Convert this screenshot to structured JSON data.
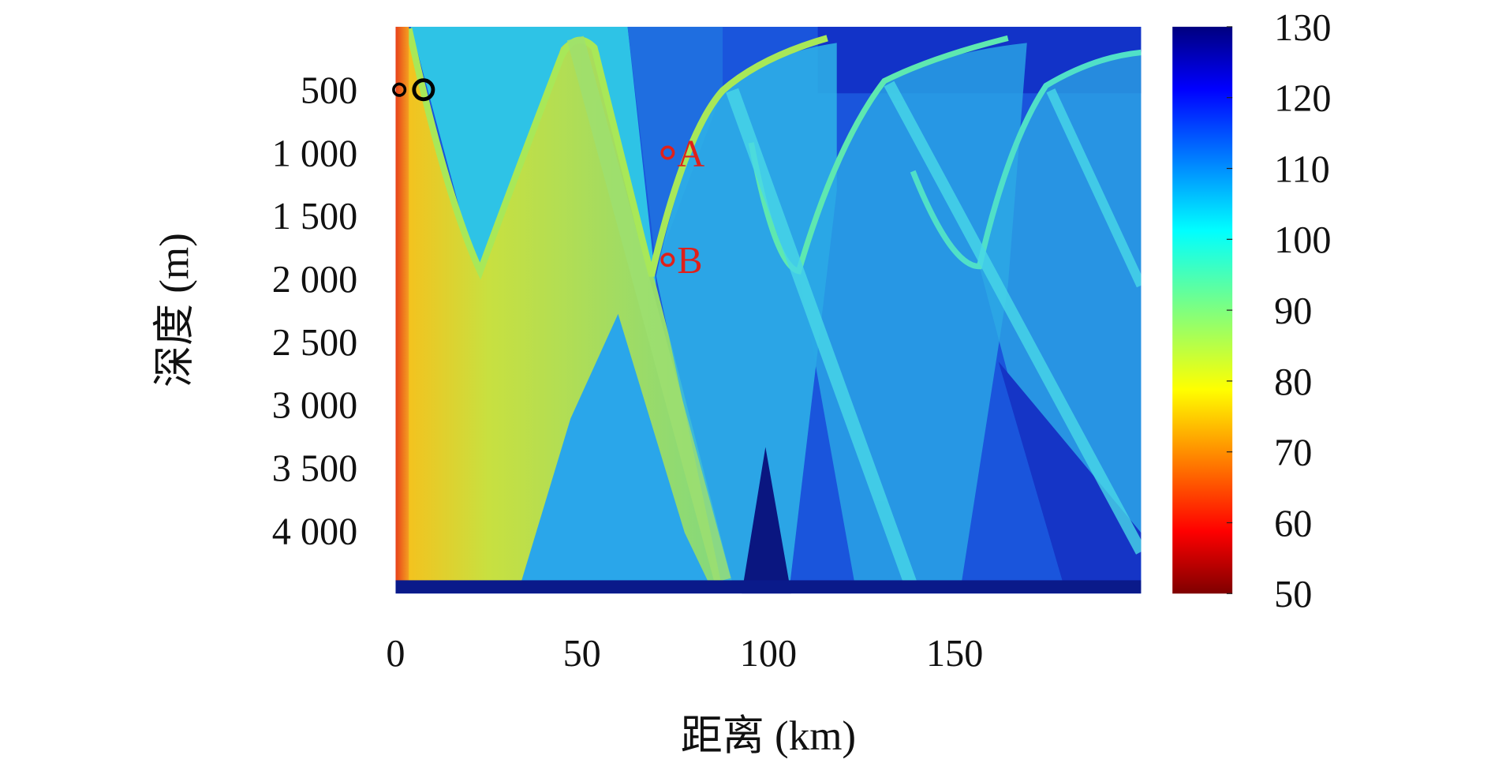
{
  "chart_data": {
    "type": "heatmap",
    "title": "",
    "xlabel": "距离 (km)",
    "ylabel": "深度 (m)",
    "xlim": [
      0,
      200
    ],
    "ylim": [
      4500,
      0
    ],
    "x_ticks": [
      "0",
      "50",
      "100",
      "150"
    ],
    "x_tick_values": [
      0,
      50,
      100,
      150
    ],
    "y_ticks": [
      "500",
      "1 000",
      "1 500",
      "2 000",
      "2 500",
      "3 000",
      "3 500",
      "4 000"
    ],
    "y_tick_values": [
      500,
      1000,
      1500,
      2000,
      2500,
      3000,
      3500,
      4000
    ],
    "colorbar": {
      "range": [
        50,
        130
      ],
      "ticks": [
        "50",
        "60",
        "70",
        "80",
        "90",
        "100",
        "110",
        "120",
        "130"
      ],
      "tick_values": [
        50,
        60,
        70,
        80,
        90,
        100,
        110,
        120,
        130
      ],
      "colormap": "jet (reversed: low=red, high=blue)"
    },
    "markers": [
      {
        "label": "",
        "range_km": 1,
        "depth_m": 500,
        "color": "#000000"
      },
      {
        "label": "",
        "range_km": 7.5,
        "depth_m": 500,
        "color": "#000000"
      },
      {
        "label": "A",
        "range_km": 73,
        "depth_m": 1000,
        "color": "#e0201a"
      },
      {
        "label": "B",
        "range_km": 73,
        "depth_m": 1850,
        "color": "#e0201a"
      }
    ]
  }
}
